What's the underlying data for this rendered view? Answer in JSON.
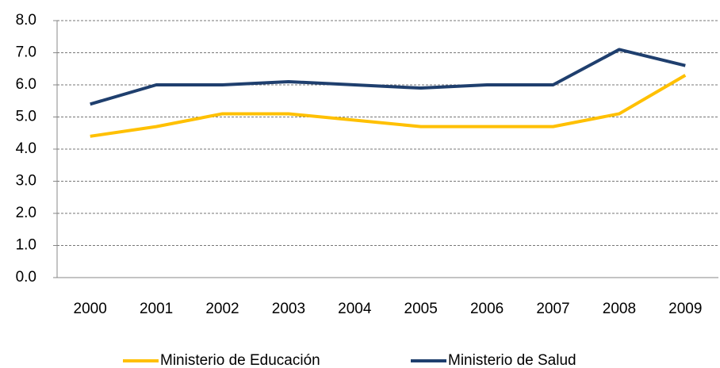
{
  "chart_data": {
    "type": "line",
    "categories": [
      "2000",
      "2001",
      "2002",
      "2003",
      "2004",
      "2005",
      "2006",
      "2007",
      "2008",
      "2009"
    ],
    "series": [
      {
        "name": "Ministerio de Educación",
        "color": "#ffc000",
        "values": [
          4.4,
          4.7,
          5.1,
          5.1,
          4.9,
          4.7,
          4.7,
          4.7,
          5.1,
          6.3
        ]
      },
      {
        "name": "Ministerio de Salud",
        "color": "#1f3f6e",
        "values": [
          5.4,
          6.0,
          6.0,
          6.1,
          6.0,
          5.9,
          6.0,
          6.0,
          7.1,
          6.6
        ]
      }
    ],
    "ylim": [
      0,
      8
    ],
    "yticks": [
      {
        "value": 0,
        "label": "0.0"
      },
      {
        "value": 1,
        "label": "1.0"
      },
      {
        "value": 2,
        "label": "2.0"
      },
      {
        "value": 3,
        "label": "3.0"
      },
      {
        "value": 4,
        "label": "4.0"
      },
      {
        "value": 5,
        "label": "5.0"
      },
      {
        "value": 6,
        "label": "6.0"
      },
      {
        "value": 7,
        "label": "7.0"
      },
      {
        "value": 8,
        "label": "8.0"
      }
    ],
    "grid": true,
    "legend": "bottom"
  }
}
